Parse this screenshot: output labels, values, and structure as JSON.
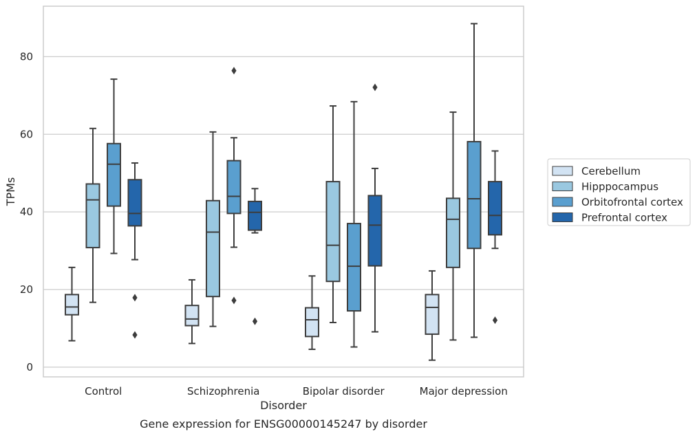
{
  "chart_data": {
    "type": "box",
    "title": "",
    "caption": "Gene expression for ENSG00000145247 by disorder",
    "xlabel": "Disorder",
    "ylabel": "TPMs",
    "ylim": [
      -2.5,
      93
    ],
    "yticks": [
      0,
      20,
      40,
      60,
      80
    ],
    "grid": "horizontal",
    "legend_position": "right",
    "categories": [
      "Control",
      "Schizophrenia",
      "Bipolar disorder",
      "Major depression"
    ],
    "series": [
      {
        "name": "Cerebellum",
        "color": "#d2e3f3",
        "boxes": [
          {
            "whisker_low": 6.8,
            "q1": 13.5,
            "median": 15.5,
            "q3": 18.7,
            "whisker_high": 25.7,
            "outliers": []
          },
          {
            "whisker_low": 6.1,
            "q1": 10.7,
            "median": 12.4,
            "q3": 15.9,
            "whisker_high": 22.5,
            "outliers": []
          },
          {
            "whisker_low": 4.6,
            "q1": 7.9,
            "median": 12.2,
            "q3": 15.3,
            "whisker_high": 23.5,
            "outliers": []
          },
          {
            "whisker_low": 1.8,
            "q1": 8.5,
            "median": 15.4,
            "q3": 18.7,
            "whisker_high": 24.8,
            "outliers": []
          }
        ]
      },
      {
        "name": "Hipppocampus",
        "color": "#9ac8e0",
        "boxes": [
          {
            "whisker_low": 16.7,
            "q1": 30.8,
            "median": 43.1,
            "q3": 47.2,
            "whisker_high": 61.5,
            "outliers": []
          },
          {
            "whisker_low": 10.5,
            "q1": 18.2,
            "median": 34.8,
            "q3": 42.9,
            "whisker_high": 60.6,
            "outliers": []
          },
          {
            "whisker_low": 11.5,
            "q1": 22.1,
            "median": 31.4,
            "q3": 47.8,
            "whisker_high": 67.3,
            "outliers": []
          },
          {
            "whisker_low": 7.0,
            "q1": 25.7,
            "median": 38.1,
            "q3": 43.5,
            "whisker_high": 65.7,
            "outliers": []
          }
        ]
      },
      {
        "name": "Orbitofrontal cortex",
        "color": "#5a9fcf",
        "boxes": [
          {
            "whisker_low": 29.3,
            "q1": 41.5,
            "median": 52.3,
            "q3": 57.6,
            "whisker_high": 74.2,
            "outliers": []
          },
          {
            "whisker_low": 30.9,
            "q1": 39.6,
            "median": 44.0,
            "q3": 53.2,
            "whisker_high": 59.1,
            "outliers": [
              17.2,
              76.4
            ]
          },
          {
            "whisker_low": 5.2,
            "q1": 14.5,
            "median": 26.0,
            "q3": 37.0,
            "whisker_high": 68.4,
            "outliers": []
          },
          {
            "whisker_low": 7.7,
            "q1": 30.6,
            "median": 43.4,
            "q3": 58.1,
            "whisker_high": 88.5,
            "outliers": []
          }
        ]
      },
      {
        "name": "Prefrontal cortex",
        "color": "#2466ab",
        "boxes": [
          {
            "whisker_low": 27.7,
            "q1": 36.4,
            "median": 39.6,
            "q3": 48.3,
            "whisker_high": 52.6,
            "outliers": [
              8.3,
              17.9
            ]
          },
          {
            "whisker_low": 34.6,
            "q1": 35.3,
            "median": 39.9,
            "q3": 42.7,
            "whisker_high": 46.0,
            "outliers": [
              11.8
            ]
          },
          {
            "whisker_low": 9.1,
            "q1": 26.1,
            "median": 36.6,
            "q3": 44.2,
            "whisker_high": 51.2,
            "outliers": [
              72.1
            ]
          },
          {
            "whisker_low": 30.6,
            "q1": 34.1,
            "median": 39.1,
            "q3": 47.8,
            "whisker_high": 55.7,
            "outliers": [
              12.1
            ]
          }
        ]
      }
    ]
  }
}
